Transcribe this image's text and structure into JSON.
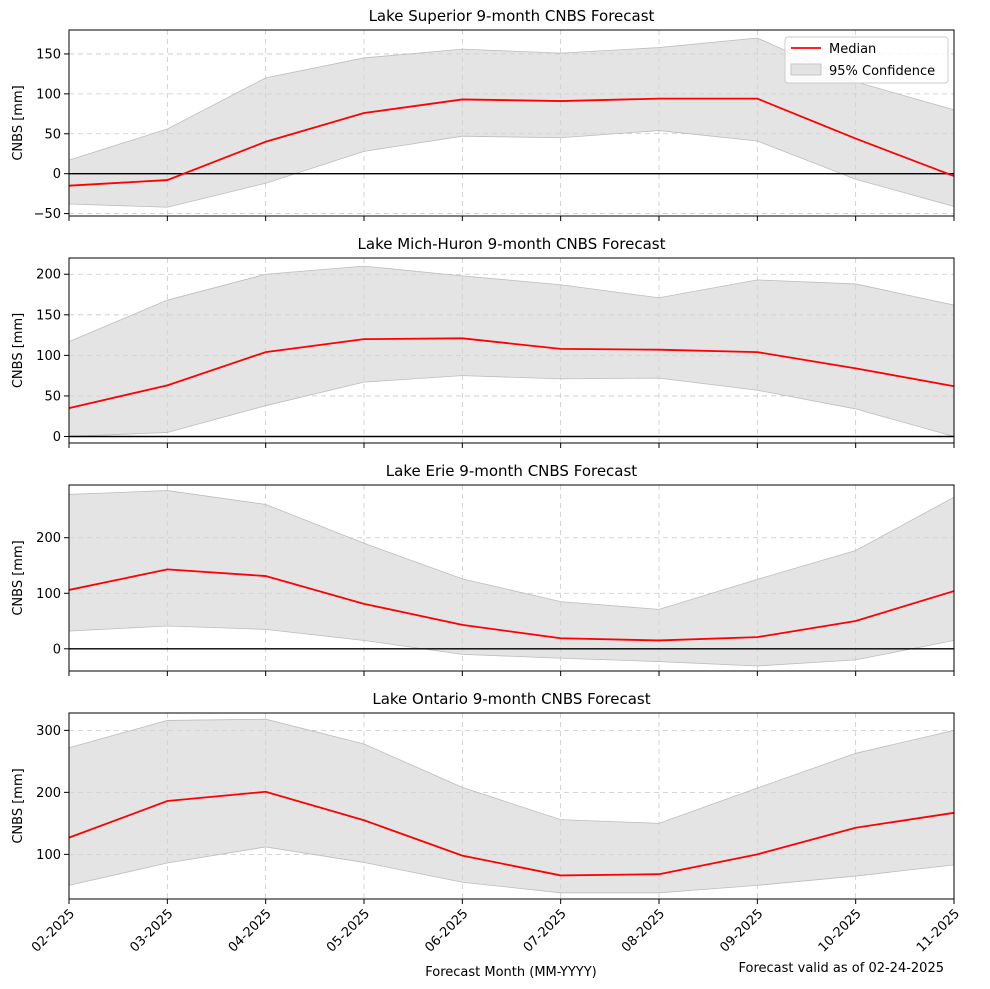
{
  "figure": {
    "xlabel": "Forecast Month (MM-YYYY)",
    "footnote": "Forecast valid as of 02-24-2025",
    "legend": {
      "position": "top-right",
      "median_label": "Median",
      "ci_label": "95% Confidence"
    },
    "colors": {
      "median": "#ff0000",
      "band": "#d3d3d3",
      "zero_line": "#000000",
      "grid": "#c8c8c8"
    }
  },
  "chart_data": [
    {
      "type": "line",
      "title": "Lake Superior 9-month CNBS Forecast",
      "ylabel": "CNBS [mm]",
      "x": [
        "02-2025",
        "03-2025",
        "04-2025",
        "05-2025",
        "06-2025",
        "07-2025",
        "08-2025",
        "09-2025",
        "10-2025",
        "11-2025"
      ],
      "ylim": [
        -53,
        180
      ],
      "yticks": [
        -50,
        0,
        50,
        100,
        150
      ],
      "grid": true,
      "series": [
        {
          "name": "Median",
          "values": [
            -15,
            -8,
            40,
            76,
            93,
            91,
            94,
            94,
            44,
            -3
          ]
        },
        {
          "name": "95% Confidence",
          "lower": [
            -38,
            -42,
            -12,
            28,
            47,
            45,
            54,
            41,
            -7,
            -41
          ],
          "upper": [
            17,
            56,
            120,
            145,
            156,
            151,
            158,
            170,
            115,
            80
          ]
        }
      ]
    },
    {
      "type": "line",
      "title": "Lake Mich-Huron 9-month CNBS Forecast",
      "ylabel": "CNBS [mm]",
      "x": [
        "02-2025",
        "03-2025",
        "04-2025",
        "05-2025",
        "06-2025",
        "07-2025",
        "08-2025",
        "09-2025",
        "10-2025",
        "11-2025"
      ],
      "ylim": [
        -8,
        220
      ],
      "yticks": [
        0,
        50,
        100,
        150,
        200
      ],
      "grid": true,
      "series": [
        {
          "name": "Median",
          "values": [
            35,
            63,
            104,
            120,
            121,
            108,
            107,
            104,
            84,
            62
          ]
        },
        {
          "name": "95% Confidence",
          "lower": [
            0,
            5,
            38,
            67,
            75,
            71,
            72,
            57,
            34,
            0
          ],
          "upper": [
            117,
            168,
            200,
            210,
            198,
            187,
            171,
            193,
            188,
            162
          ]
        }
      ]
    },
    {
      "type": "line",
      "title": "Lake Erie 9-month CNBS Forecast",
      "ylabel": "CNBS [mm]",
      "x": [
        "02-2025",
        "03-2025",
        "04-2025",
        "05-2025",
        "06-2025",
        "07-2025",
        "08-2025",
        "09-2025",
        "10-2025",
        "11-2025"
      ],
      "ylim": [
        -40,
        295
      ],
      "yticks": [
        0,
        100,
        200
      ],
      "grid": true,
      "series": [
        {
          "name": "Median",
          "values": [
            106,
            143,
            131,
            81,
            43,
            19,
            15,
            21,
            50,
            104
          ]
        },
        {
          "name": "95% Confidence",
          "lower": [
            32,
            41,
            35,
            15,
            -10,
            -17,
            -23,
            -31,
            -20,
            15
          ],
          "upper": [
            278,
            285,
            260,
            190,
            126,
            85,
            71,
            125,
            177,
            273
          ]
        }
      ]
    },
    {
      "type": "line",
      "title": "Lake Ontario 9-month CNBS Forecast",
      "ylabel": "CNBS [mm]",
      "x": [
        "02-2025",
        "03-2025",
        "04-2025",
        "05-2025",
        "06-2025",
        "07-2025",
        "08-2025",
        "09-2025",
        "10-2025",
        "11-2025"
      ],
      "ylim": [
        28,
        328
      ],
      "yticks": [
        100,
        200,
        300
      ],
      "grid": true,
      "series": [
        {
          "name": "Median",
          "values": [
            127,
            186,
            201,
            155,
            98,
            66,
            68,
            100,
            143,
            167
          ]
        },
        {
          "name": "95% Confidence",
          "lower": [
            50,
            86,
            112,
            87,
            55,
            38,
            38,
            50,
            65,
            83
          ],
          "upper": [
            272,
            316,
            318,
            278,
            208,
            156,
            150,
            207,
            263,
            300
          ]
        }
      ]
    }
  ]
}
